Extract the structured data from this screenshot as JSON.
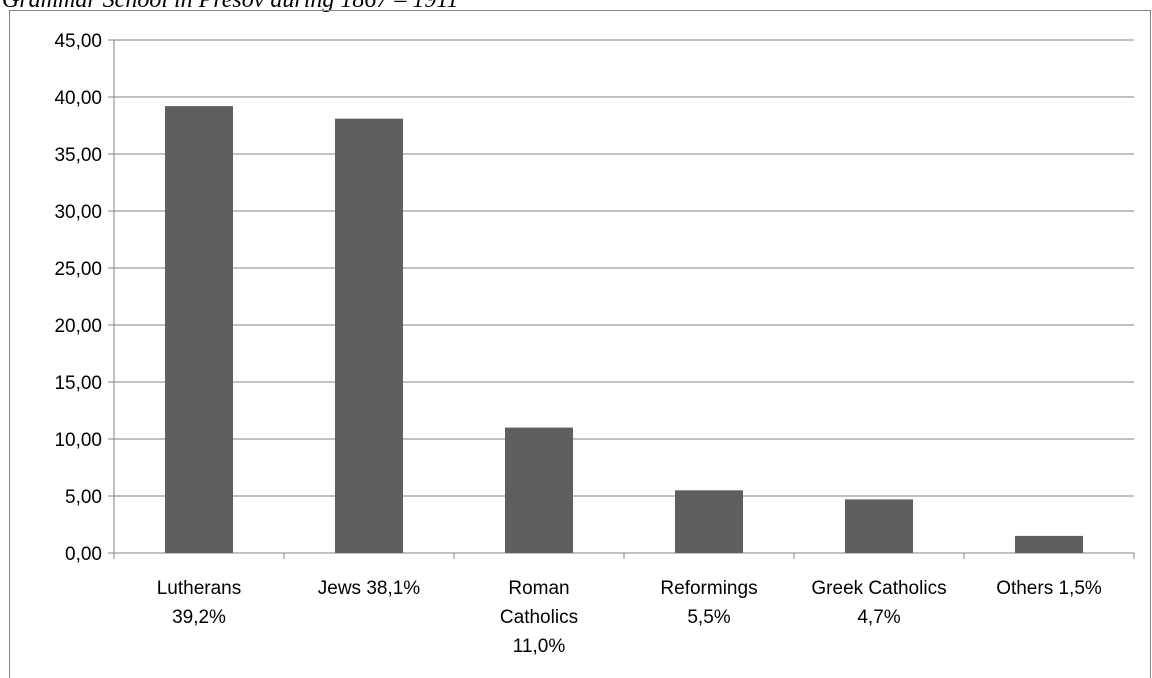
{
  "caption": "Grammar School in Prešov during 1867 – 1911",
  "chart_data": {
    "type": "bar",
    "categories": [
      [
        "Lutherans",
        "39,2%"
      ],
      [
        "Jews 38,1%"
      ],
      [
        "Roman",
        "Catholics",
        "11,0%"
      ],
      [
        "Reformings",
        "5,5%"
      ],
      [
        "Greek Catholics",
        "4,7%"
      ],
      [
        "Others 1,5%"
      ]
    ],
    "values": [
      39.2,
      38.1,
      11.0,
      5.5,
      4.7,
      1.5
    ],
    "y_ticks": [
      "0,00",
      "5,00",
      "10,00",
      "15,00",
      "20,00",
      "25,00",
      "30,00",
      "35,00",
      "40,00",
      "45,00"
    ],
    "ylim": [
      0,
      45
    ],
    "grid": true,
    "bar_color": "#5f5f5f",
    "grid_color": "#868686"
  }
}
